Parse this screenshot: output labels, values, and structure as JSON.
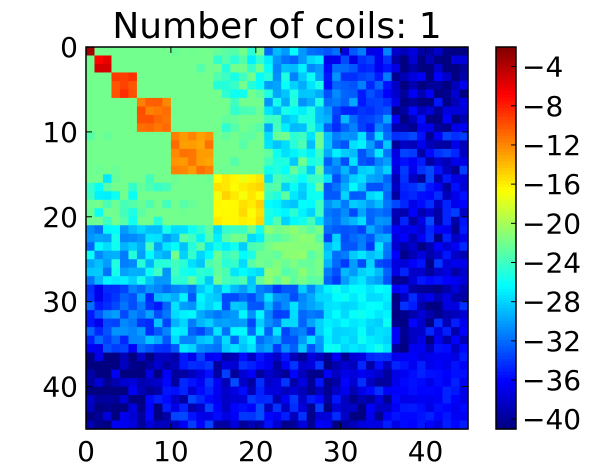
{
  "chart_data": {
    "type": "heatmap",
    "title": "Number of coils: 1",
    "xlabel": "",
    "ylabel": "",
    "size": 45,
    "xlim": [
      0,
      45
    ],
    "ylim": [
      45,
      0
    ],
    "x_ticks": [
      0,
      10,
      20,
      30,
      40
    ],
    "y_ticks": [
      0,
      10,
      20,
      30,
      40
    ],
    "x_tick_labels": [
      "0",
      "10",
      "20",
      "30",
      "40"
    ],
    "y_tick_labels": [
      "0",
      "10",
      "20",
      "30",
      "40"
    ],
    "colormap": "jet",
    "color_range": [
      -41,
      -2
    ],
    "colorbar_ticks": [
      -4,
      -8,
      -12,
      -16,
      -20,
      -24,
      -28,
      -32,
      -36,
      -40
    ],
    "colorbar_labels": [
      "−4",
      "−8",
      "−12",
      "−16",
      "−20",
      "−24",
      "−28",
      "−32",
      "−36",
      "−40"
    ],
    "blocks": [
      {
        "start": 0,
        "end": 1,
        "value": -2
      },
      {
        "start": 1,
        "end": 3,
        "value": -6
      },
      {
        "start": 3,
        "end": 6,
        "value": -9
      },
      {
        "start": 6,
        "end": 10,
        "value": -11
      },
      {
        "start": 10,
        "end": 15,
        "value": -12
      },
      {
        "start": 15,
        "end": 21,
        "value": -16
      },
      {
        "start": 21,
        "end": 28,
        "value": -22
      },
      {
        "start": 28,
        "end": 36,
        "value": -27
      },
      {
        "start": 36,
        "end": 45,
        "value": -36
      }
    ]
  }
}
